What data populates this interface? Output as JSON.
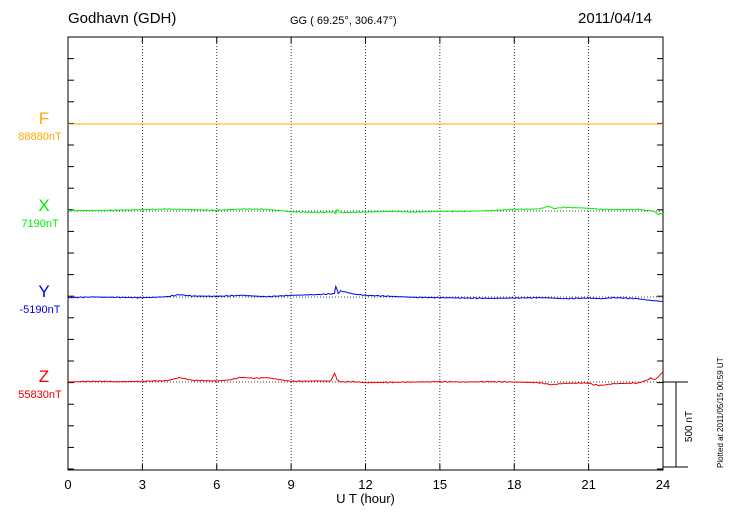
{
  "header": {
    "station": "Godhavn (GDH)",
    "coords": "GG ( 69.25°, 306.47°)",
    "date": "2011/04/14"
  },
  "plotted_note": "Plotted at 2011/05/15 00:59 UT",
  "chart_data": {
    "type": "line",
    "xlabel": "U T (hour)",
    "xlim": [
      0,
      24
    ],
    "xticks": [
      0,
      3,
      6,
      9,
      12,
      15,
      18,
      21,
      24
    ],
    "grid": true,
    "scale_bar": {
      "label": "500 nT",
      "value_nT": 500
    },
    "series": [
      {
        "name": "F",
        "baseline_label": "88880nT",
        "baseline_nT": 88880,
        "color": "#ffaa00",
        "dev": [
          [
            0,
            0
          ],
          [
            24,
            0
          ]
        ]
      },
      {
        "name": "X",
        "baseline_label": "7190nT",
        "baseline_nT": 7190,
        "color": "#00ee00",
        "dev": [
          [
            0,
            2
          ],
          [
            1,
            3
          ],
          [
            2,
            5
          ],
          [
            3,
            8
          ],
          [
            4,
            12
          ],
          [
            4.5,
            10
          ],
          [
            5,
            8
          ],
          [
            6,
            4
          ],
          [
            6.5,
            8
          ],
          [
            7,
            12
          ],
          [
            8,
            10
          ],
          [
            9,
            -4
          ],
          [
            10,
            -8
          ],
          [
            10.75,
            -6
          ],
          [
            10.8,
            -16
          ],
          [
            10.85,
            8
          ],
          [
            11,
            -10
          ],
          [
            12,
            -6
          ],
          [
            13,
            -2
          ],
          [
            14,
            -6
          ],
          [
            15,
            -2
          ],
          [
            16,
            -2
          ],
          [
            17,
            2
          ],
          [
            18,
            10
          ],
          [
            19,
            12
          ],
          [
            19.2,
            20
          ],
          [
            19.4,
            28
          ],
          [
            19.6,
            14
          ],
          [
            20,
            22
          ],
          [
            21,
            16
          ],
          [
            21.5,
            10
          ],
          [
            22,
            8
          ],
          [
            23,
            10
          ],
          [
            23.3,
            4
          ],
          [
            23.6,
            0
          ],
          [
            23.8,
            -18
          ],
          [
            24,
            -16
          ]
        ]
      },
      {
        "name": "Y",
        "baseline_label": "-5190nT",
        "baseline_nT": -5190,
        "color": "#0000ee",
        "dev": [
          [
            0,
            -4
          ],
          [
            1,
            0
          ],
          [
            2,
            -2
          ],
          [
            3,
            -4
          ],
          [
            3.5,
            -2
          ],
          [
            4,
            2
          ],
          [
            4.5,
            14
          ],
          [
            5,
            6
          ],
          [
            6,
            4
          ],
          [
            7,
            10
          ],
          [
            8,
            2
          ],
          [
            9,
            10
          ],
          [
            10,
            14
          ],
          [
            10.6,
            18
          ],
          [
            10.75,
            24
          ],
          [
            10.8,
            62
          ],
          [
            10.9,
            22
          ],
          [
            11,
            36
          ],
          [
            11.5,
            18
          ],
          [
            12,
            10
          ],
          [
            13,
            4
          ],
          [
            14,
            -2
          ],
          [
            15,
            -4
          ],
          [
            16,
            -6
          ],
          [
            17,
            -8
          ],
          [
            18,
            -6
          ],
          [
            19,
            -4
          ],
          [
            19.5,
            -6
          ],
          [
            20,
            -10
          ],
          [
            21,
            -6
          ],
          [
            21.5,
            -10
          ],
          [
            22,
            -4
          ],
          [
            23,
            -10
          ],
          [
            23.5,
            -20
          ],
          [
            24,
            -26
          ]
        ]
      },
      {
        "name": "Z",
        "baseline_label": "55830nT",
        "baseline_nT": 55830,
        "color": "#ee0000",
        "dev": [
          [
            0,
            0
          ],
          [
            1,
            4
          ],
          [
            2,
            2
          ],
          [
            3,
            4
          ],
          [
            4,
            8
          ],
          [
            4.5,
            26
          ],
          [
            5,
            10
          ],
          [
            6,
            6
          ],
          [
            6.5,
            12
          ],
          [
            7,
            28
          ],
          [
            7.5,
            22
          ],
          [
            8,
            26
          ],
          [
            9,
            4
          ],
          [
            10,
            6
          ],
          [
            10.6,
            6
          ],
          [
            10.75,
            50
          ],
          [
            10.85,
            16
          ],
          [
            11,
            0
          ],
          [
            11.5,
            2
          ],
          [
            12,
            -4
          ],
          [
            13,
            -2
          ],
          [
            14,
            0
          ],
          [
            15,
            2
          ],
          [
            16,
            0
          ],
          [
            17,
            2
          ],
          [
            18,
            0
          ],
          [
            19,
            -4
          ],
          [
            19.5,
            -16
          ],
          [
            20,
            -8
          ],
          [
            21,
            -6
          ],
          [
            21.2,
            -16
          ],
          [
            21.5,
            -20
          ],
          [
            22,
            -10
          ],
          [
            23,
            -6
          ],
          [
            23.3,
            8
          ],
          [
            23.5,
            22
          ],
          [
            23.7,
            14
          ],
          [
            24,
            60
          ]
        ]
      }
    ]
  }
}
